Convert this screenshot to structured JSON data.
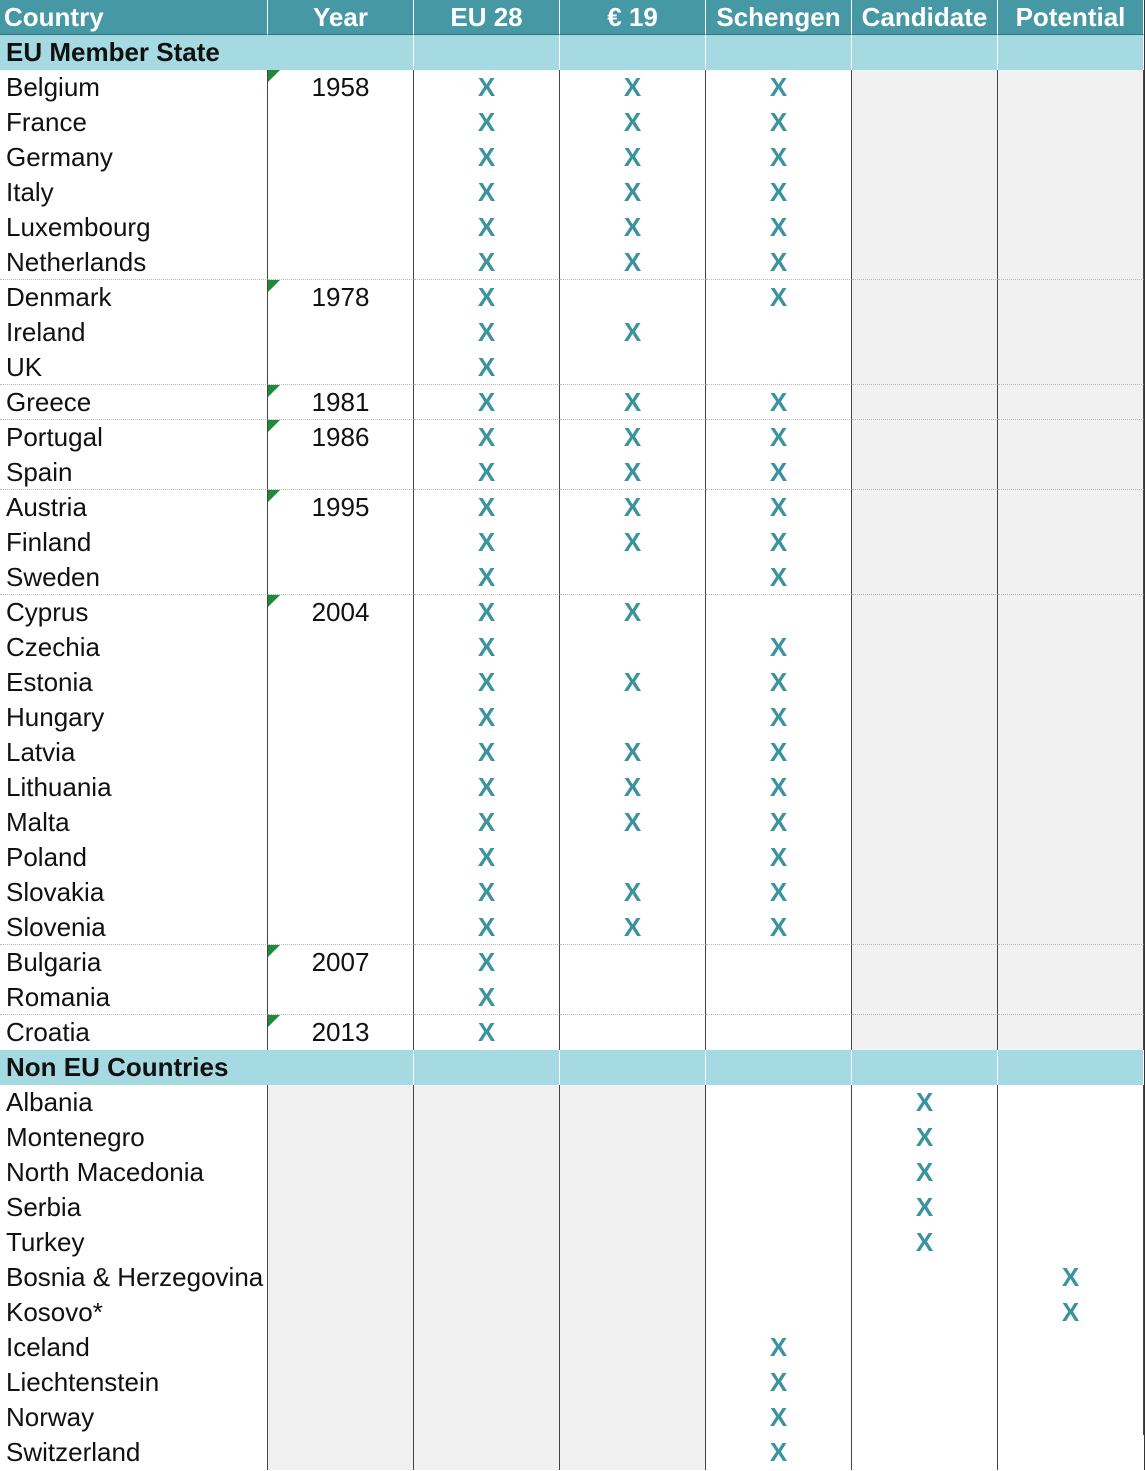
{
  "columns": [
    "Country",
    "Year",
    "EU 28",
    "€ 19",
    "Schengen",
    "Candidate",
    "Potential"
  ],
  "sections": {
    "eu": "EU Member State",
    "non_eu": "Non EU Countries"
  },
  "mark": "X",
  "colors": {
    "header": "#4598a4",
    "section": "#a5dae2",
    "mark": "#3a939d",
    "shade": "#f1f1f1"
  },
  "eu_rows": [
    {
      "country": "Belgium",
      "year": "1958",
      "eu28": true,
      "euro": true,
      "schengen": true
    },
    {
      "country": "France",
      "year": "",
      "eu28": true,
      "euro": true,
      "schengen": true
    },
    {
      "country": "Germany",
      "year": "",
      "eu28": true,
      "euro": true,
      "schengen": true
    },
    {
      "country": "Italy",
      "year": "",
      "eu28": true,
      "euro": true,
      "schengen": true
    },
    {
      "country": "Luxembourg",
      "year": "",
      "eu28": true,
      "euro": true,
      "schengen": true
    },
    {
      "country": "Netherlands",
      "year": "",
      "eu28": true,
      "euro": true,
      "schengen": true
    },
    {
      "country": "Denmark",
      "year": "1978",
      "eu28": true,
      "euro": false,
      "schengen": true
    },
    {
      "country": "Ireland",
      "year": "",
      "eu28": true,
      "euro": true,
      "schengen": false
    },
    {
      "country": "UK",
      "year": "",
      "eu28": true,
      "euro": false,
      "schengen": false
    },
    {
      "country": "Greece",
      "year": "1981",
      "eu28": true,
      "euro": true,
      "schengen": true
    },
    {
      "country": "Portugal",
      "year": "1986",
      "eu28": true,
      "euro": true,
      "schengen": true
    },
    {
      "country": "Spain",
      "year": "",
      "eu28": true,
      "euro": true,
      "schengen": true
    },
    {
      "country": "Austria",
      "year": "1995",
      "eu28": true,
      "euro": true,
      "schengen": true
    },
    {
      "country": "Finland",
      "year": "",
      "eu28": true,
      "euro": true,
      "schengen": true
    },
    {
      "country": "Sweden",
      "year": "",
      "eu28": true,
      "euro": false,
      "schengen": true
    },
    {
      "country": "Cyprus",
      "year": "2004",
      "eu28": true,
      "euro": true,
      "schengen": false
    },
    {
      "country": "Czechia",
      "year": "",
      "eu28": true,
      "euro": false,
      "schengen": true
    },
    {
      "country": "Estonia",
      "year": "",
      "eu28": true,
      "euro": true,
      "schengen": true
    },
    {
      "country": "Hungary",
      "year": "",
      "eu28": true,
      "euro": false,
      "schengen": true
    },
    {
      "country": "Latvia",
      "year": "",
      "eu28": true,
      "euro": true,
      "schengen": true
    },
    {
      "country": "Lithuania",
      "year": "",
      "eu28": true,
      "euro": true,
      "schengen": true
    },
    {
      "country": "Malta",
      "year": "",
      "eu28": true,
      "euro": true,
      "schengen": true
    },
    {
      "country": "Poland",
      "year": "",
      "eu28": true,
      "euro": false,
      "schengen": true
    },
    {
      "country": "Slovakia",
      "year": "",
      "eu28": true,
      "euro": true,
      "schengen": true
    },
    {
      "country": "Slovenia",
      "year": "",
      "eu28": true,
      "euro": true,
      "schengen": true
    },
    {
      "country": "Bulgaria",
      "year": "2007",
      "eu28": true,
      "euro": false,
      "schengen": false
    },
    {
      "country": "Romania",
      "year": "",
      "eu28": true,
      "euro": false,
      "schengen": false
    },
    {
      "country": "Croatia",
      "year": "2013",
      "eu28": true,
      "euro": false,
      "schengen": false
    }
  ],
  "non_eu_rows": [
    {
      "country": "Albania",
      "schengen": false,
      "candidate": true,
      "potential": false
    },
    {
      "country": "Montenegro",
      "schengen": false,
      "candidate": true,
      "potential": false
    },
    {
      "country": "North Macedonia",
      "schengen": false,
      "candidate": true,
      "potential": false
    },
    {
      "country": "Serbia",
      "schengen": false,
      "candidate": true,
      "potential": false
    },
    {
      "country": "Turkey",
      "schengen": false,
      "candidate": true,
      "potential": false
    },
    {
      "country": "Bosnia & Herzegovina",
      "schengen": false,
      "candidate": false,
      "potential": true
    },
    {
      "country": "Kosovo*",
      "schengen": false,
      "candidate": false,
      "potential": true
    },
    {
      "country": "Iceland",
      "schengen": true,
      "candidate": false,
      "potential": false
    },
    {
      "country": "Liechtenstein",
      "schengen": true,
      "candidate": false,
      "potential": false
    },
    {
      "country": "Norway",
      "schengen": true,
      "candidate": false,
      "potential": false
    },
    {
      "country": "Switzerland",
      "schengen": true,
      "candidate": false,
      "potential": false
    }
  ]
}
